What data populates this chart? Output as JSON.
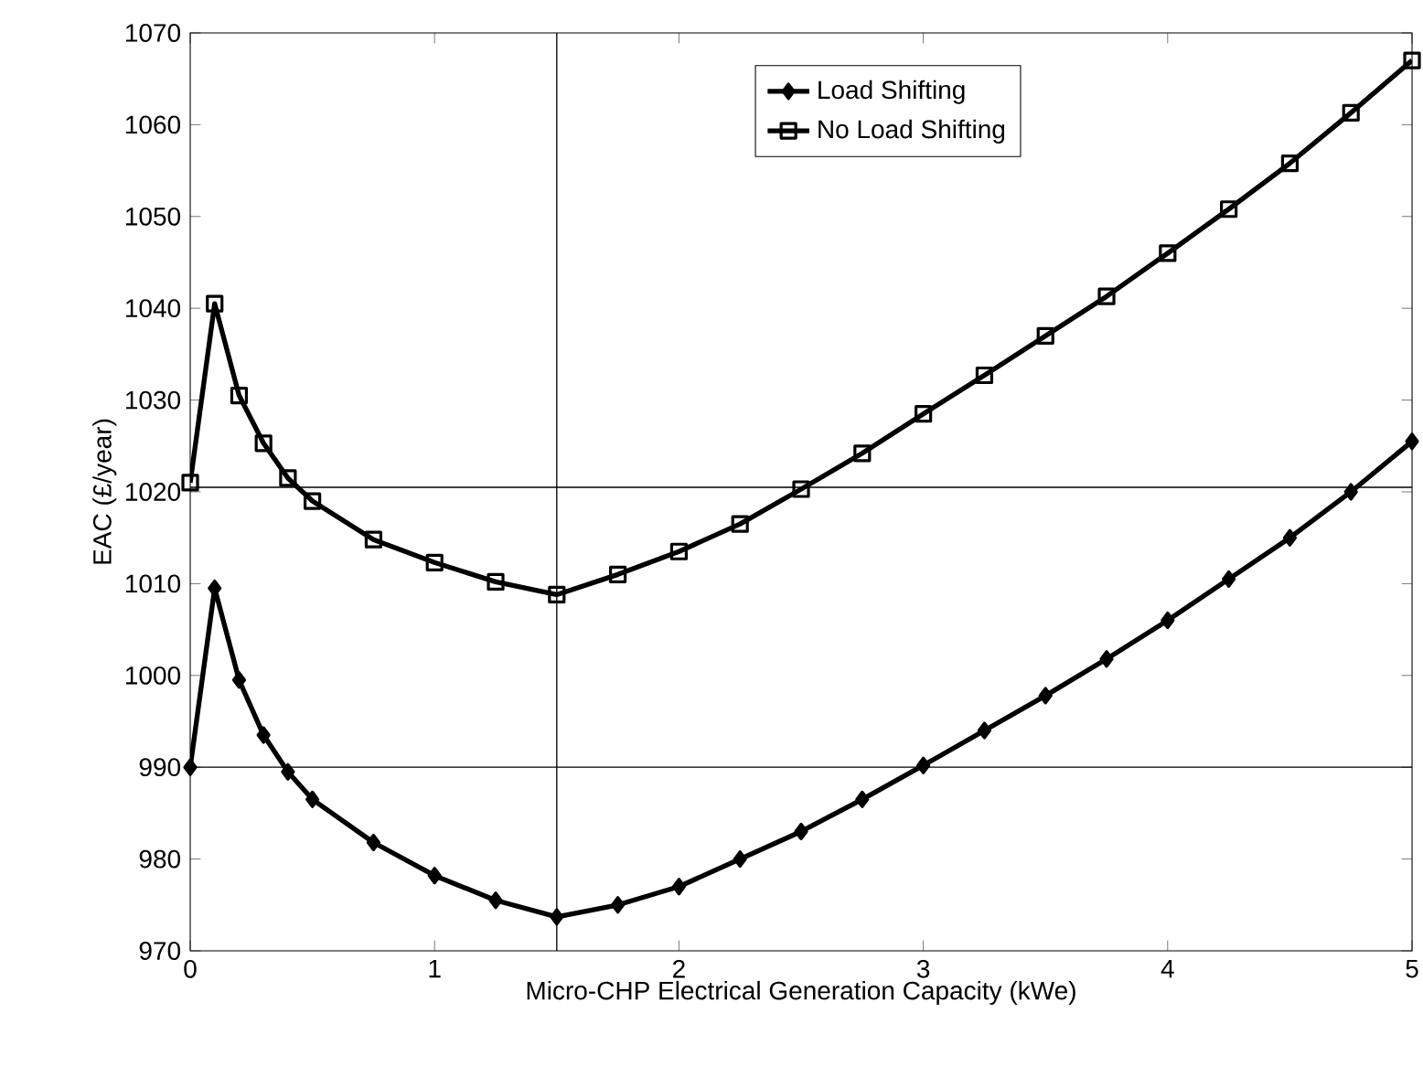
{
  "chart_data": {
    "type": "line",
    "xlabel": "Micro-CHP Electrical Generation Capacity (kWe)",
    "ylabel": "EAC (£/year)",
    "x": [
      0,
      0.1,
      0.2,
      0.3,
      0.4,
      0.5,
      0.75,
      1,
      1.25,
      1.5,
      1.75,
      2,
      2.25,
      2.5,
      2.75,
      3,
      3.25,
      3.5,
      3.75,
      4,
      4.25,
      4.5,
      4.75,
      5
    ],
    "series": [
      {
        "name": "Load Shifting",
        "color": "#000000",
        "marker": "diamond",
        "values": [
          990,
          1009.5,
          999.5,
          993.5,
          989.5,
          986.5,
          981.8,
          978.2,
          975.5,
          973.7,
          975,
          977,
          980,
          983,
          986.5,
          990.2,
          994,
          997.8,
          1001.8,
          1006,
          1010.5,
          1015,
          1020,
          1025.5
        ]
      },
      {
        "name": "No Load Shifting",
        "color": "#000000",
        "marker": "square",
        "values": [
          1021,
          1040.5,
          1030.5,
          1025.3,
          1021.5,
          1019,
          1014.8,
          1012.3,
          1010.2,
          1008.8,
          1011,
          1013.5,
          1016.5,
          1020.3,
          1024.2,
          1028.5,
          1032.7,
          1037,
          1041.3,
          1046,
          1050.8,
          1055.8,
          1061.3,
          1067
        ]
      }
    ],
    "xlim": [
      0,
      5
    ],
    "xticks": [
      0,
      1,
      2,
      3,
      4,
      5
    ],
    "ylim": [
      970,
      1070
    ],
    "yticks": [
      970,
      980,
      990,
      1000,
      1010,
      1020,
      1030,
      1040,
      1050,
      1060,
      1070
    ],
    "ref_lines": [
      {
        "axis": "y",
        "value": 1020.5,
        "color": "#000000"
      },
      {
        "axis": "y",
        "value": 990,
        "color": "#000000"
      },
      {
        "axis": "x",
        "value": 1.5,
        "color": "#000000"
      }
    ],
    "grid": false,
    "legend": "top right",
    "line_style": "solid"
  }
}
